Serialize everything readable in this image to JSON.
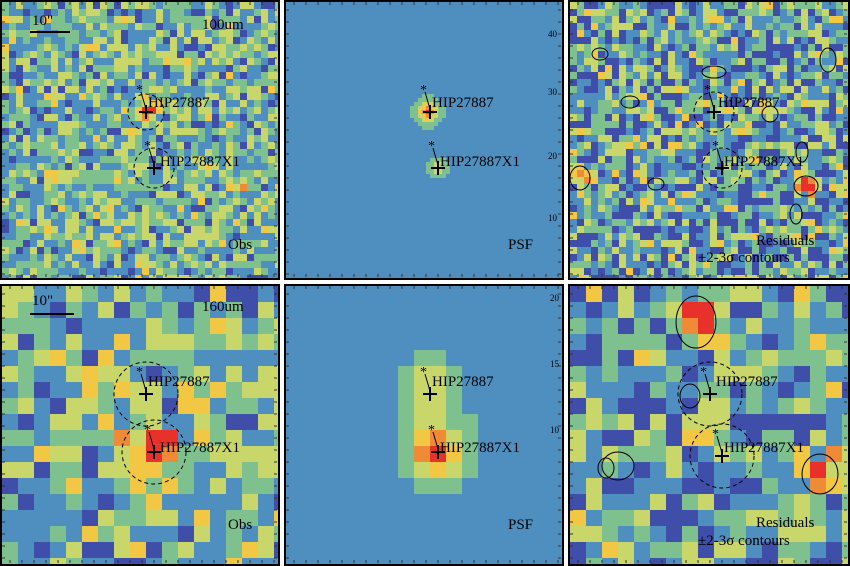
{
  "top_row": {
    "obs": {
      "band": "100um",
      "scale": "10\"",
      "label": "Obs",
      "src1": "HIP27887",
      "src2": "HIP27887X1"
    },
    "psf": {
      "label": "PSF",
      "src1": "HIP27887",
      "src2": "HIP27887X1",
      "ticks": [
        "40",
        "30",
        "20",
        "10"
      ]
    },
    "res": {
      "label1": "Residuals",
      "label2": "±2-3σ contours",
      "src1": "HIP27887",
      "src2": "HIP27887X1"
    }
  },
  "bottom_row": {
    "obs": {
      "band": "160um",
      "scale": "10\"",
      "label": "Obs",
      "src1": "HIP27887",
      "src2": "HIP27887X1"
    },
    "psf": {
      "label": "PSF",
      "src1": "HIP27887",
      "src2": "HIP27887X1",
      "ticks": [
        "20",
        "15",
        "10"
      ]
    },
    "res": {
      "label1": "Residuals",
      "label2": "±2-3σ contours",
      "src1": "HIP27887",
      "src2": "HIP27887X1"
    }
  },
  "colors": {
    "noise_low": "#3f4ea8",
    "noise_mid": "#7fc08f",
    "noise_high": "#f2c744",
    "peak": "#e8312a",
    "psf_bg": "#5fa2b7"
  }
}
